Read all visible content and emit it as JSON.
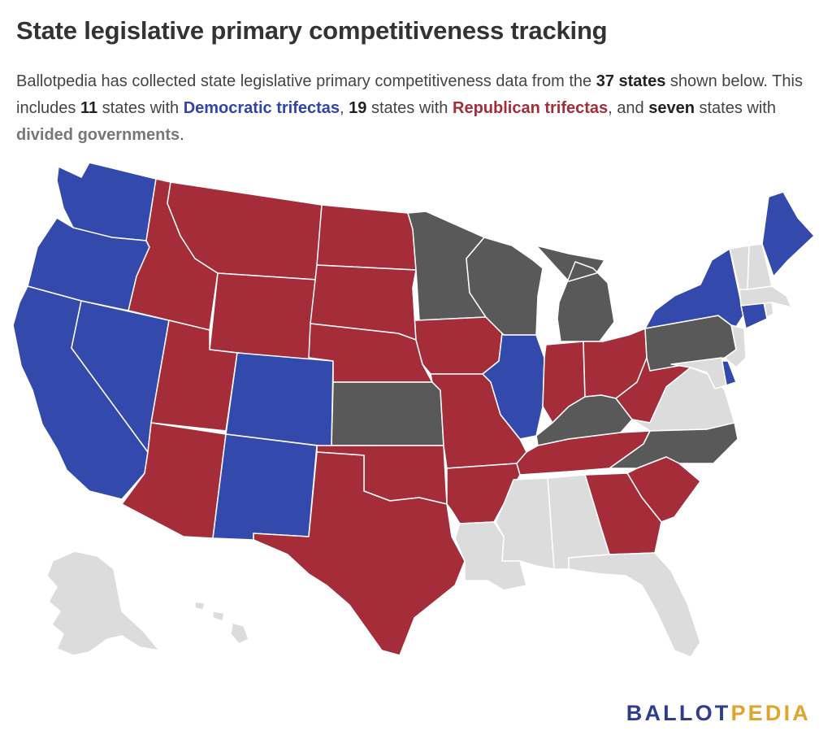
{
  "title": "State legislative primary competitiveness tracking",
  "description": {
    "p1": "Ballotpedia has collected state legislative primary competitiveness data from the ",
    "total_states": "37 states",
    "p2": " shown below. This includes ",
    "dem_count": "11",
    "p3": " states with ",
    "dem_label": "Democratic trifectas",
    "p4": ", ",
    "rep_count": "19",
    "p5": " states with ",
    "rep_label": "Republican trifectas",
    "p6": ", and ",
    "div_count": "seven",
    "p7": " states with ",
    "div_label": "divided governments",
    "p8": "."
  },
  "legend_colors": {
    "democratic_trifecta": "#3349ab",
    "republican_trifecta": "#a52d3a",
    "divided_government": "#595959",
    "not_included": "#dcdcdc"
  },
  "states": {
    "WA": "democratic_trifecta",
    "OR": "democratic_trifecta",
    "CA": "democratic_trifecta",
    "NV": "democratic_trifecta",
    "CO": "democratic_trifecta",
    "NM": "democratic_trifecta",
    "IL": "democratic_trifecta",
    "NY": "democratic_trifecta",
    "ME": "democratic_trifecta",
    "CT": "democratic_trifecta",
    "DE": "democratic_trifecta",
    "ID": "republican_trifecta",
    "MT": "republican_trifecta",
    "WY": "republican_trifecta",
    "UT": "republican_trifecta",
    "AZ": "republican_trifecta",
    "ND": "republican_trifecta",
    "SD": "republican_trifecta",
    "NE": "republican_trifecta",
    "OK": "republican_trifecta",
    "TX": "republican_trifecta",
    "IA": "republican_trifecta",
    "MO": "republican_trifecta",
    "AR": "republican_trifecta",
    "IN": "republican_trifecta",
    "OH": "republican_trifecta",
    "WV": "republican_trifecta",
    "TN": "republican_trifecta",
    "GA": "republican_trifecta",
    "SC": "republican_trifecta",
    "MN": "divided_government",
    "WI": "divided_government",
    "MI": "divided_government",
    "KS": "divided_government",
    "KY": "divided_government",
    "PA": "divided_government",
    "NC": "divided_government",
    "VT": "not_included",
    "NH": "not_included",
    "MA": "not_included",
    "RI": "not_included",
    "NJ": "not_included",
    "MD": "not_included",
    "VA": "not_included",
    "AL": "not_included",
    "MS": "not_included",
    "LA": "not_included",
    "FL": "not_included",
    "AK": "not_included",
    "HI": "not_included"
  },
  "brand": {
    "part1": "BALLOT",
    "part2": "PEDIA"
  }
}
